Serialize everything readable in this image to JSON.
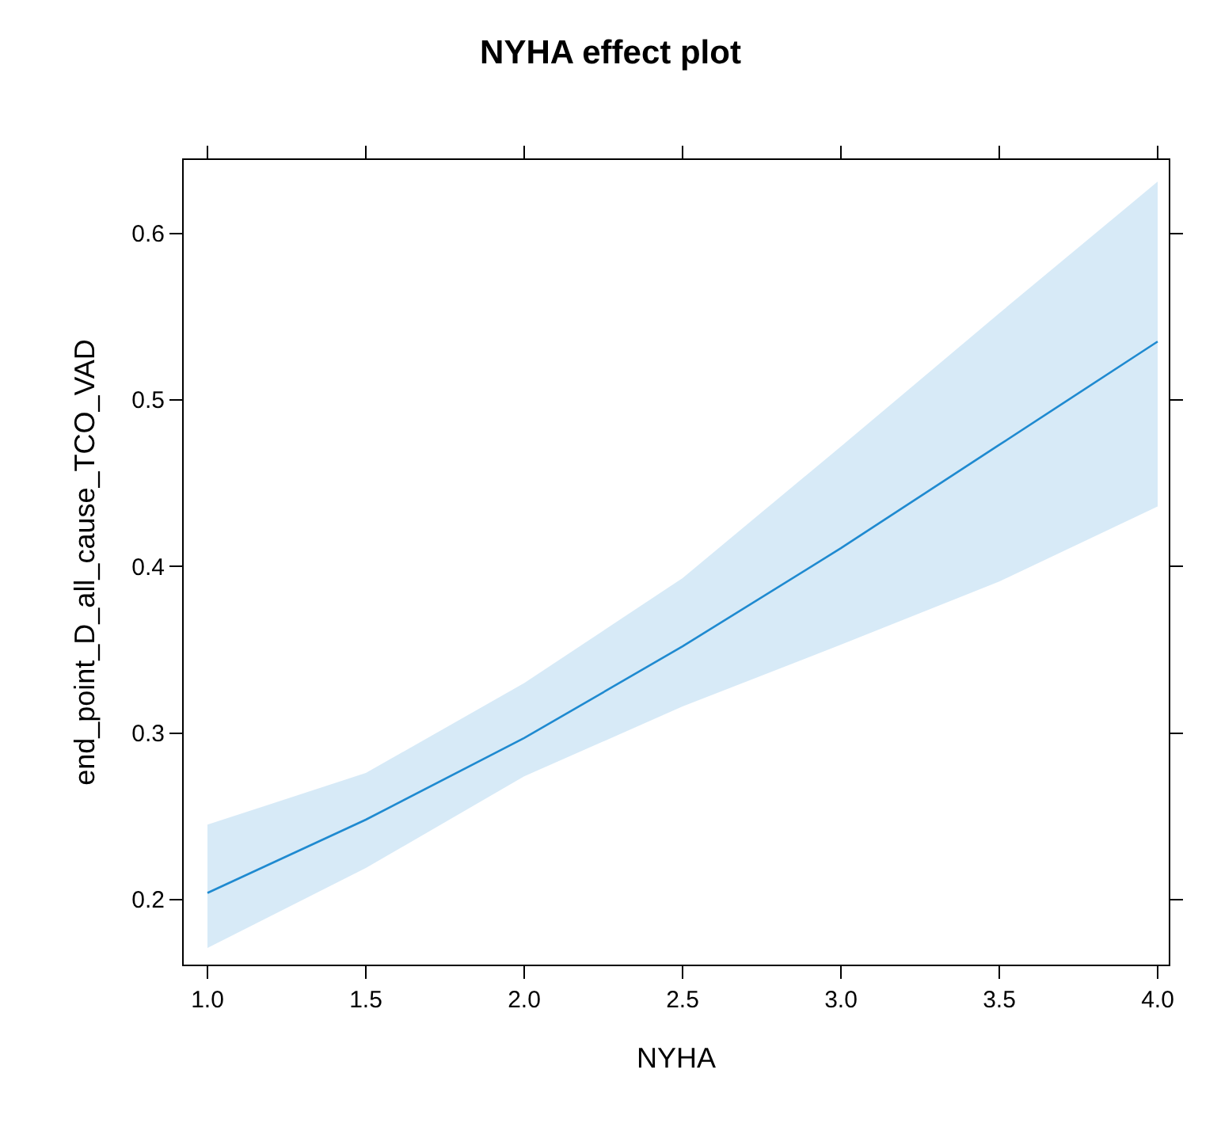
{
  "chart_data": {
    "type": "line",
    "title": "NYHA effect plot",
    "xlabel": "NYHA",
    "ylabel": "end_point_D_all_cause_TCO_VAD",
    "x": [
      1,
      1.5,
      2,
      2.5,
      3,
      3.5,
      4
    ],
    "series": [
      {
        "color": "#1f8ad0",
        "values": [
          0.204,
          0.248,
          0.297,
          0.352,
          0.411,
          0.473,
          0.535
        ],
        "lower": [
          0.171,
          0.219,
          0.274,
          0.316,
          0.353,
          0.391,
          0.436
        ],
        "upper": [
          0.245,
          0.276,
          0.33,
          0.393,
          0.472,
          0.552,
          0.631
        ]
      }
    ],
    "xlim": [
      0.925,
      4.035
    ],
    "ylim": [
      0.161,
      0.644
    ],
    "xticks": [
      {
        "value": 1,
        "label": "1.0"
      },
      {
        "value": 1.5,
        "label": "1.5"
      },
      {
        "value": 2,
        "label": "2.0"
      },
      {
        "value": 2.5,
        "label": "2.5"
      },
      {
        "value": 3,
        "label": "3.0"
      },
      {
        "value": 3.5,
        "label": "3.5"
      },
      {
        "value": 4,
        "label": "4.0"
      }
    ],
    "yticks": [
      0.2,
      0.3,
      0.4,
      0.5,
      0.6
    ],
    "grid": false,
    "marker": "none",
    "line_style": "solid"
  }
}
